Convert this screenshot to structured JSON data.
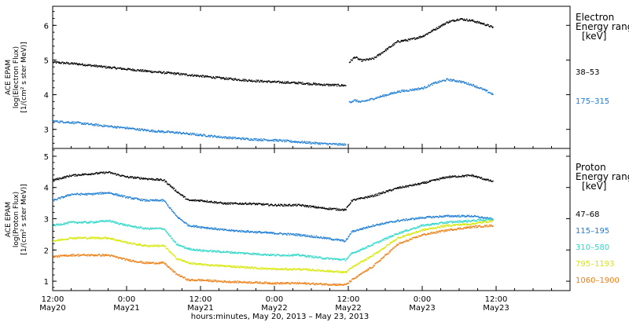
{
  "chart_data": [
    {
      "type": "scatter",
      "panel": "electron",
      "ylabel": [
        "ACE EPAM",
        "log(Electron Flux)",
        "[1/(cm² s ster MeV)]"
      ],
      "ylim": [
        2.45,
        6.55
      ],
      "yticks": [
        3,
        4,
        5,
        6
      ],
      "xlim_hours": [
        0,
        84
      ],
      "legend_title": [
        "Electron",
        "Energy range",
        "[keV]"
      ],
      "series": [
        {
          "name": "38–53",
          "color": "#000000",
          "points": [
            [
              0,
              4.95
            ],
            [
              4,
              4.9
            ],
            [
              8,
              4.82
            ],
            [
              12,
              4.75
            ],
            [
              16,
              4.68
            ],
            [
              20,
              4.62
            ],
            [
              24,
              4.55
            ],
            [
              28,
              4.48
            ],
            [
              32,
              4.42
            ],
            [
              36,
              4.38
            ],
            [
              40,
              4.35
            ],
            [
              44,
              4.3
            ],
            [
              47.6,
              4.28
            ],
            [
              48.1,
              4.95
            ],
            [
              49,
              5.1
            ],
            [
              50,
              5.0
            ],
            [
              52,
              5.05
            ],
            [
              54,
              5.3
            ],
            [
              56,
              5.55
            ],
            [
              58,
              5.6
            ],
            [
              60,
              5.7
            ],
            [
              62,
              5.9
            ],
            [
              64,
              6.1
            ],
            [
              66,
              6.2
            ],
            [
              68,
              6.15
            ],
            [
              70,
              6.05
            ],
            [
              71.5,
              5.95
            ]
          ]
        },
        {
          "name": "175–315",
          "color": "#1a7cd6",
          "points": [
            [
              0,
              3.25
            ],
            [
              4,
              3.2
            ],
            [
              8,
              3.12
            ],
            [
              12,
              3.05
            ],
            [
              16,
              2.97
            ],
            [
              20,
              2.92
            ],
            [
              24,
              2.85
            ],
            [
              28,
              2.78
            ],
            [
              32,
              2.73
            ],
            [
              36,
              2.7
            ],
            [
              40,
              2.65
            ],
            [
              44,
              2.6
            ],
            [
              47.6,
              2.57
            ],
            [
              48.1,
              3.8
            ],
            [
              49,
              3.85
            ],
            [
              50,
              3.8
            ],
            [
              52,
              3.9
            ],
            [
              54,
              4.0
            ],
            [
              56,
              4.1
            ],
            [
              58,
              4.15
            ],
            [
              60,
              4.2
            ],
            [
              62,
              4.35
            ],
            [
              64,
              4.45
            ],
            [
              66,
              4.4
            ],
            [
              68,
              4.3
            ],
            [
              70,
              4.15
            ],
            [
              71.5,
              4.02
            ]
          ]
        }
      ]
    },
    {
      "type": "scatter",
      "panel": "proton",
      "ylabel": [
        "ACE EPAM",
        "log(Proton Flux)",
        "[1/(cm² s ster MeV)]"
      ],
      "ylim": [
        0.7,
        5.25
      ],
      "yticks": [
        1,
        2,
        3,
        4,
        5
      ],
      "xlim_hours": [
        0,
        84
      ],
      "legend_title": [
        "Proton",
        "Energy range",
        "[keV]"
      ],
      "series": [
        {
          "name": "47–68",
          "color": "#000000",
          "points": [
            [
              0,
              4.25
            ],
            [
              3,
              4.4
            ],
            [
              6,
              4.45
            ],
            [
              9,
              4.5
            ],
            [
              12,
              4.35
            ],
            [
              15,
              4.3
            ],
            [
              18,
              4.25
            ],
            [
              20,
              3.9
            ],
            [
              22,
              3.6
            ],
            [
              24,
              3.6
            ],
            [
              28,
              3.5
            ],
            [
              32,
              3.5
            ],
            [
              36,
              3.45
            ],
            [
              40,
              3.45
            ],
            [
              44,
              3.35
            ],
            [
              47.5,
              3.3
            ],
            [
              48.5,
              3.6
            ],
            [
              52,
              3.75
            ],
            [
              56,
              4.0
            ],
            [
              60,
              4.15
            ],
            [
              64,
              4.35
            ],
            [
              68,
              4.4
            ],
            [
              71.5,
              4.2
            ]
          ]
        },
        {
          "name": "115–195",
          "color": "#1a7cd6",
          "points": [
            [
              0,
              3.6
            ],
            [
              3,
              3.8
            ],
            [
              6,
              3.8
            ],
            [
              9,
              3.85
            ],
            [
              12,
              3.7
            ],
            [
              15,
              3.6
            ],
            [
              18,
              3.6
            ],
            [
              20,
              3.1
            ],
            [
              22,
              2.8
            ],
            [
              24,
              2.75
            ],
            [
              28,
              2.65
            ],
            [
              32,
              2.6
            ],
            [
              36,
              2.55
            ],
            [
              40,
              2.5
            ],
            [
              44,
              2.4
            ],
            [
              47.5,
              2.3
            ],
            [
              48.5,
              2.6
            ],
            [
              52,
              2.8
            ],
            [
              56,
              2.95
            ],
            [
              60,
              3.05
            ],
            [
              64,
              3.1
            ],
            [
              68,
              3.1
            ],
            [
              71.5,
              3.0
            ]
          ]
        },
        {
          "name": "310–580",
          "color": "#2ad8c8",
          "points": [
            [
              0,
              2.8
            ],
            [
              3,
              2.9
            ],
            [
              6,
              2.9
            ],
            [
              9,
              2.95
            ],
            [
              12,
              2.8
            ],
            [
              15,
              2.7
            ],
            [
              18,
              2.7
            ],
            [
              20,
              2.2
            ],
            [
              22,
              2.05
            ],
            [
              24,
              2.0
            ],
            [
              28,
              1.95
            ],
            [
              32,
              1.9
            ],
            [
              36,
              1.85
            ],
            [
              40,
              1.85
            ],
            [
              44,
              1.75
            ],
            [
              47.5,
              1.7
            ],
            [
              48.5,
              1.9
            ],
            [
              52,
              2.2
            ],
            [
              56,
              2.55
            ],
            [
              60,
              2.8
            ],
            [
              64,
              2.9
            ],
            [
              68,
              2.95
            ],
            [
              71.5,
              3.0
            ]
          ]
        },
        {
          "name": "795–1193",
          "color": "#d6e800",
          "points": [
            [
              0,
              2.3
            ],
            [
              3,
              2.4
            ],
            [
              6,
              2.4
            ],
            [
              9,
              2.4
            ],
            [
              12,
              2.25
            ],
            [
              15,
              2.15
            ],
            [
              18,
              2.15
            ],
            [
              20,
              1.75
            ],
            [
              22,
              1.6
            ],
            [
              24,
              1.55
            ],
            [
              28,
              1.5
            ],
            [
              32,
              1.45
            ],
            [
              36,
              1.4
            ],
            [
              40,
              1.4
            ],
            [
              44,
              1.35
            ],
            [
              47.5,
              1.3
            ],
            [
              48.5,
              1.45
            ],
            [
              52,
              1.85
            ],
            [
              56,
              2.4
            ],
            [
              60,
              2.65
            ],
            [
              64,
              2.8
            ],
            [
              68,
              2.85
            ],
            [
              71.5,
              2.95
            ]
          ]
        },
        {
          "name": "1060–1900",
          "color": "#f07d10",
          "points": [
            [
              0,
              1.8
            ],
            [
              3,
              1.85
            ],
            [
              6,
              1.85
            ],
            [
              9,
              1.85
            ],
            [
              12,
              1.7
            ],
            [
              15,
              1.6
            ],
            [
              18,
              1.6
            ],
            [
              20,
              1.25
            ],
            [
              22,
              1.05
            ],
            [
              24,
              1.05
            ],
            [
              28,
              1.0
            ],
            [
              32,
              0.98
            ],
            [
              36,
              0.95
            ],
            [
              40,
              0.95
            ],
            [
              44,
              0.92
            ],
            [
              47.5,
              0.9
            ],
            [
              48.5,
              1.05
            ],
            [
              52,
              1.5
            ],
            [
              56,
              2.2
            ],
            [
              60,
              2.5
            ],
            [
              64,
              2.65
            ],
            [
              68,
              2.75
            ],
            [
              71.5,
              2.8
            ]
          ]
        }
      ]
    }
  ],
  "x_axis": {
    "ticks": [
      {
        "hour": 0,
        "line1": "12:00",
        "line2": "May20"
      },
      {
        "hour": 12,
        "line1": "0:00",
        "line2": "May21"
      },
      {
        "hour": 24,
        "line1": "12:00",
        "line2": "May21"
      },
      {
        "hour": 36,
        "line1": "0:00",
        "line2": "May22"
      },
      {
        "hour": 48,
        "line1": "12:00",
        "line2": "May22"
      },
      {
        "hour": 60,
        "line1": "0:00",
        "line2": "May23"
      },
      {
        "hour": 72,
        "line1": "12:00",
        "line2": "May23"
      }
    ],
    "label": "hours:minutes, May 20, 2013 – May 23, 2013"
  }
}
